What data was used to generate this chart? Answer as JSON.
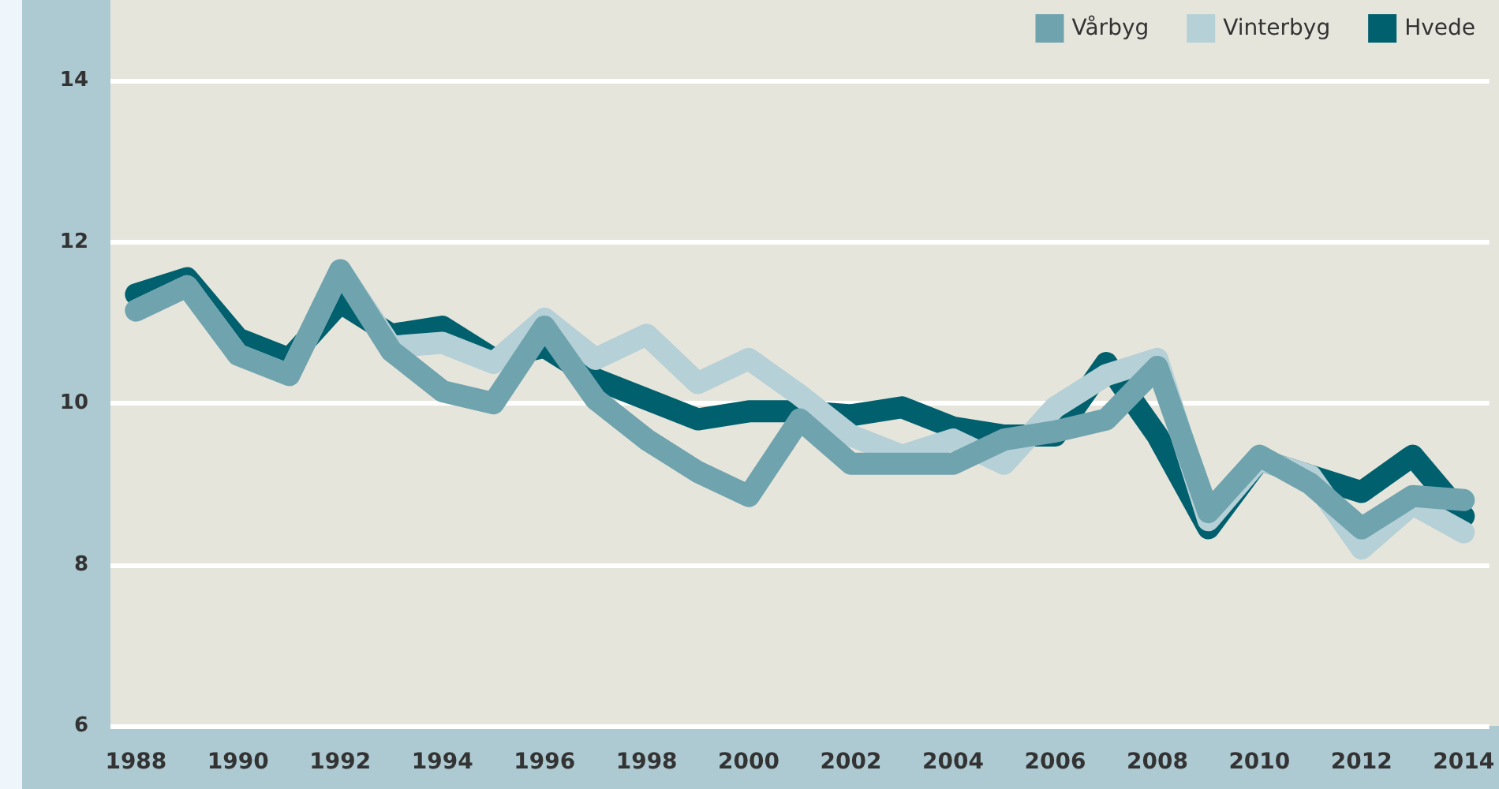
{
  "chart_data": {
    "type": "line",
    "categories": [
      "1988",
      null,
      "1990",
      null,
      "1992",
      null,
      "1994",
      null,
      "1996",
      null,
      "1998",
      null,
      "2000",
      null,
      "2002",
      null,
      "2004",
      null,
      "2006",
      null,
      "2008",
      null,
      "2010",
      null,
      "2012",
      null,
      "2014"
    ],
    "series": [
      {
        "name": "Vårbyg",
        "color": "#6fa3ae",
        "values": [
          11.15,
          11.45,
          10.6,
          10.35,
          11.65,
          10.65,
          10.15,
          10.0,
          10.95,
          10.05,
          9.55,
          9.15,
          8.85,
          9.8,
          9.25,
          9.25,
          9.25,
          9.55,
          9.65,
          9.8,
          10.45,
          8.65,
          9.35,
          9.0,
          8.45,
          8.85,
          8.8
        ]
      },
      {
        "name": "Vinterbyg",
        "color": "#b5d0d6",
        "values": [
          11.15,
          11.45,
          10.6,
          10.35,
          11.65,
          10.7,
          10.75,
          10.5,
          11.05,
          10.55,
          10.85,
          10.25,
          10.55,
          10.1,
          9.6,
          9.35,
          9.55,
          9.25,
          9.95,
          10.35,
          10.55,
          8.55,
          9.3,
          9.1,
          8.2,
          8.75,
          8.4
        ]
      },
      {
        "name": "Hvede",
        "color": "#00606e",
        "values": [
          11.35,
          11.55,
          10.8,
          10.55,
          11.25,
          10.85,
          10.95,
          10.55,
          10.7,
          10.3,
          10.05,
          9.8,
          9.9,
          9.9,
          9.85,
          9.95,
          9.7,
          9.6,
          9.6,
          10.5,
          9.6,
          8.45,
          9.3,
          9.1,
          8.9,
          9.35,
          8.6
        ]
      }
    ],
    "ylim": [
      6,
      15
    ],
    "yticks": [
      6,
      8,
      10,
      12,
      14
    ],
    "grid": "y",
    "legend": "top right",
    "line_style": "solid"
  }
}
